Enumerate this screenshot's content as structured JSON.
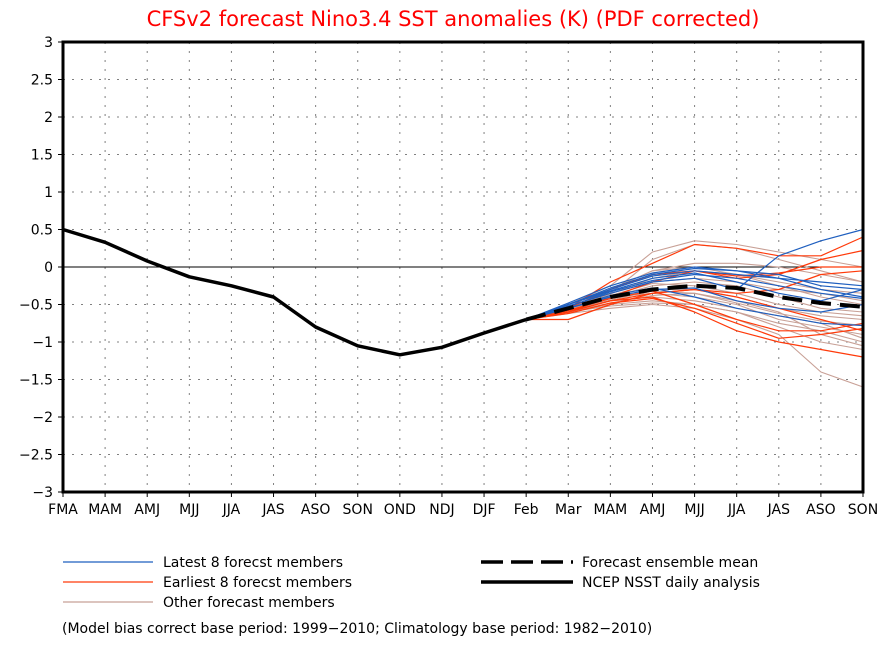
{
  "chart_data": {
    "type": "line",
    "title": "CFSv2 forecast Nino3.4 SST anomalies (K) (PDF corrected)",
    "xlabel": "",
    "ylabel": "",
    "ylim": [
      -3,
      3
    ],
    "yticks": [
      3,
      2.5,
      2,
      1.5,
      1,
      0.5,
      0,
      -0.5,
      -1,
      -1.5,
      -2,
      -2.5,
      -3
    ],
    "ytick_labels": [
      "3",
      "2.5",
      "2",
      "1.5",
      "1",
      "0.5",
      "0",
      "−0.5",
      "−1",
      "−1.5",
      "−2",
      "−2.5",
      "−3"
    ],
    "categories": [
      "FMA",
      "MAM",
      "AMJ",
      "MJJ",
      "JJA",
      "JAS",
      "ASO",
      "SON",
      "OND",
      "NDJ",
      "DJF",
      "Feb",
      "Mar",
      "MAM",
      "AMJ",
      "MJJ",
      "JJA",
      "JAS",
      "ASO",
      "SON"
    ],
    "grid": true,
    "zero_line": true,
    "colors": {
      "title": "#ff0000",
      "latest": "#1f5fbf",
      "earliest": "#ff3a0a",
      "other": "#c8a096",
      "observed": "#000000",
      "mean": "#000000",
      "grid": "#808080"
    },
    "series": [
      {
        "name": "NCEP NSST daily analysis",
        "style": "solid-thick",
        "start_index": 0,
        "values": [
          0.5,
          0.33,
          0.08,
          -0.13,
          -0.25,
          -0.4,
          -0.8,
          -1.05,
          -1.17,
          -1.07,
          -0.88,
          -0.7
        ]
      },
      {
        "name": "Forecast ensemble mean",
        "style": "dashed-thick",
        "start_index": 11,
        "values": [
          -0.7,
          -0.55,
          -0.4,
          -0.3,
          -0.25,
          -0.28,
          -0.4,
          -0.48,
          -0.53
        ]
      }
    ],
    "members": {
      "start_index": 11,
      "latest": [
        [
          -0.7,
          -0.5,
          -0.3,
          -0.12,
          -0.05,
          -0.1,
          -0.15,
          -0.3,
          -0.4
        ],
        [
          -0.7,
          -0.48,
          -0.25,
          -0.08,
          0.0,
          -0.05,
          -0.1,
          -0.25,
          -0.3
        ],
        [
          -0.7,
          -0.52,
          -0.35,
          -0.2,
          -0.15,
          -0.3,
          0.15,
          0.35,
          0.5
        ],
        [
          -0.7,
          -0.5,
          -0.32,
          -0.15,
          -0.08,
          -0.2,
          -0.35,
          -0.45,
          -0.3
        ],
        [
          -0.7,
          -0.55,
          -0.4,
          -0.3,
          -0.28,
          -0.45,
          -0.55,
          -0.6,
          -0.5
        ],
        [
          -0.7,
          -0.5,
          -0.28,
          -0.1,
          -0.02,
          -0.05,
          -0.15,
          -0.2,
          -0.25
        ],
        [
          -0.7,
          -0.55,
          -0.38,
          -0.28,
          -0.4,
          -0.55,
          -0.65,
          -0.75,
          -0.78
        ],
        [
          -0.7,
          -0.53,
          -0.33,
          -0.18,
          -0.1,
          -0.15,
          -0.25,
          -0.35,
          -0.42
        ]
      ],
      "earliest": [
        [
          -0.7,
          -0.55,
          -0.2,
          0.05,
          0.3,
          0.25,
          0.15,
          0.15,
          0.4
        ],
        [
          -0.7,
          -0.6,
          -0.4,
          -0.2,
          -0.05,
          -0.15,
          -0.1,
          0.1,
          0.22
        ],
        [
          -0.7,
          -0.55,
          -0.3,
          -0.1,
          -0.05,
          -0.12,
          -0.08,
          0.0,
          0.0
        ],
        [
          -0.7,
          -0.6,
          -0.45,
          -0.35,
          -0.3,
          -0.4,
          -0.55,
          -0.7,
          -0.85
        ],
        [
          -0.7,
          -0.6,
          -0.45,
          -0.4,
          -0.6,
          -0.85,
          -1.0,
          -1.1,
          -1.2
        ],
        [
          -0.7,
          -0.58,
          -0.42,
          -0.32,
          -0.5,
          -0.7,
          -0.85,
          -0.85,
          -0.75
        ],
        [
          -0.7,
          -0.7,
          -0.5,
          -0.35,
          -0.3,
          -0.35,
          -0.3,
          -0.1,
          -0.05
        ],
        [
          -0.7,
          -0.62,
          -0.48,
          -0.42,
          -0.55,
          -0.75,
          -0.95,
          -0.9,
          -0.82
        ]
      ],
      "other": [
        [
          -0.7,
          -0.5,
          -0.25,
          0.2,
          0.35,
          0.3,
          0.2,
          0.1,
          0.0
        ],
        [
          -0.7,
          -0.55,
          -0.35,
          0.1,
          0.3,
          0.25,
          0.1,
          -0.05,
          -0.2
        ],
        [
          -0.7,
          -0.55,
          -0.3,
          -0.05,
          0.05,
          0.05,
          0.0,
          -0.1,
          -0.2
        ],
        [
          -0.7,
          -0.5,
          -0.3,
          -0.05,
          0.0,
          -0.1,
          -0.25,
          -0.4,
          -0.5
        ],
        [
          -0.7,
          -0.55,
          -0.4,
          -0.35,
          -0.4,
          -0.5,
          -0.7,
          -0.8,
          -0.9
        ],
        [
          -0.7,
          -0.6,
          -0.5,
          -0.45,
          -0.5,
          -0.6,
          -0.75,
          -0.85,
          -1.0
        ],
        [
          -0.7,
          -0.62,
          -0.55,
          -0.5,
          -0.55,
          -0.7,
          -0.9,
          -1.4,
          -1.6
        ],
        [
          -0.7,
          -0.58,
          -0.45,
          -0.4,
          -0.45,
          -0.55,
          -0.65,
          -0.75,
          -0.95
        ],
        [
          -0.7,
          -0.52,
          -0.35,
          -0.2,
          -0.15,
          -0.2,
          -0.3,
          -0.35,
          -0.45
        ],
        [
          -0.7,
          -0.55,
          -0.42,
          -0.3,
          -0.3,
          -0.4,
          -0.55,
          -0.65,
          -0.7
        ],
        [
          -0.7,
          -0.6,
          -0.48,
          -0.38,
          -0.35,
          -0.45,
          -0.6,
          -0.9,
          -1.05
        ],
        [
          -0.7,
          -0.57,
          -0.4,
          -0.25,
          -0.2,
          -0.25,
          -0.4,
          -0.55,
          -0.6
        ],
        [
          -0.7,
          -0.53,
          -0.38,
          -0.22,
          -0.25,
          -0.35,
          -0.5,
          -0.6,
          -0.65
        ],
        [
          -0.7,
          -0.6,
          -0.52,
          -0.48,
          -0.5,
          -0.6,
          -0.8,
          -1.0,
          -1.1
        ],
        [
          -0.7,
          -0.56,
          -0.36,
          -0.15,
          -0.05,
          -0.1,
          -0.2,
          -0.3,
          -0.35
        ],
        [
          -0.7,
          -0.58,
          -0.44,
          -0.32,
          -0.35,
          -0.48,
          -0.62,
          -0.72,
          -0.78
        ]
      ]
    },
    "legend": {
      "placement": "bottom",
      "items": [
        {
          "key": "latest",
          "label": "Latest 8 forecst members"
        },
        {
          "key": "earliest",
          "label": "Earliest 8 forecst members"
        },
        {
          "key": "other",
          "label": "Other forecast members"
        },
        {
          "key": "mean",
          "label": "Forecast ensemble mean"
        },
        {
          "key": "observed",
          "label": "NCEP NSST daily analysis"
        }
      ]
    },
    "footnote": "(Model bias correct base period: 1999−2010; Climatology base period: 1982−2010)"
  }
}
